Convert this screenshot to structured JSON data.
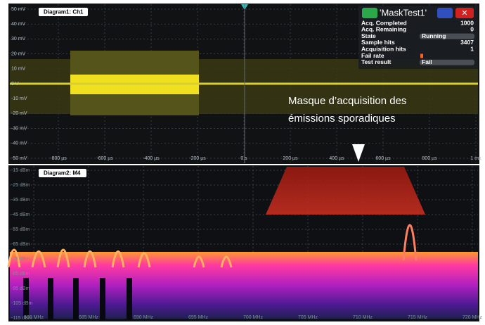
{
  "diagram1": {
    "title": "Diagram1: Ch1",
    "y_labels": [
      "50 mV",
      "40 mV",
      "30 mV",
      "20 mV",
      "10 mV",
      "0 V",
      "-10 mV",
      "-20 mV",
      "-30 mV",
      "-40 mV",
      "-50 mV"
    ],
    "x_labels": [
      "-800 µs",
      "-600 µs",
      "-400 µs",
      "-200 µs",
      "0 s",
      "200 µs",
      "400 µs",
      "600 µs",
      "800 µs",
      "1 ms"
    ]
  },
  "mask_panel": {
    "title": "'MaskTest1'",
    "rows": [
      [
        "Acq. Completed",
        "1000"
      ],
      [
        "Acq. Remaining",
        "0"
      ],
      [
        "State",
        "Running"
      ],
      [
        "Sample hits",
        "3407"
      ],
      [
        "Acquisition hits",
        "1"
      ],
      [
        "Fail rate"
      ],
      [
        "Test result",
        "Fail"
      ]
    ]
  },
  "annotation": {
    "line1": "Masque d’acquisition des",
    "line2": "émissions sporadiques"
  },
  "diagram2": {
    "title": "Diagram2: M4",
    "y_labels": [
      "-15 dBm",
      "-25 dBm",
      "-35 dBm",
      "-45 dBm",
      "-55 dBm",
      "-65 dBm",
      "-75 dBm",
      "-85 dBm",
      "-95 dBm",
      "-105 dBm",
      "-115 dBm"
    ],
    "x_labels": [
      "680 MHz",
      "685 MHz",
      "690 MHz",
      "695 MHz",
      "700 MHz",
      "705 MHz",
      "710 MHz",
      "715 MHz",
      "720 MHz"
    ]
  }
}
